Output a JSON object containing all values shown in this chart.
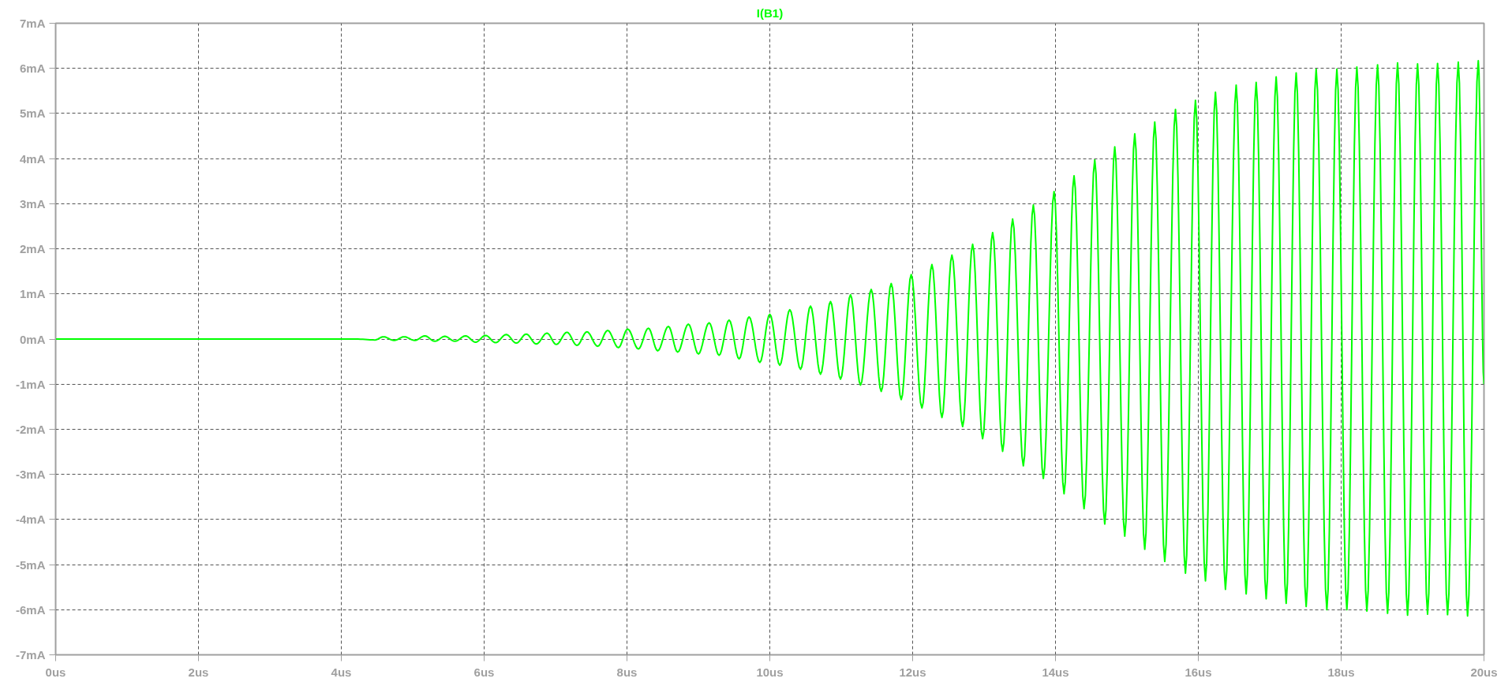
{
  "chart_data": {
    "type": "line",
    "title": "I(B1)",
    "x": [
      0,
      4.2,
      4.47,
      4.59,
      4.74,
      4.88,
      5.03,
      5.17,
      5.31,
      5.45,
      5.59,
      5.74,
      5.88,
      6.02,
      6.16,
      6.31,
      6.45,
      6.59,
      6.73,
      6.88,
      7.01,
      7.16,
      7.3,
      7.44,
      7.59,
      7.73,
      7.88,
      8.01,
      8.16,
      8.3,
      8.43,
      8.58,
      8.71,
      8.86,
      9.0,
      9.15,
      9.29,
      9.43,
      9.57,
      9.71,
      9.86,
      10.0,
      10.14,
      10.28,
      10.43,
      10.57,
      10.71,
      10.85,
      10.99,
      11.13,
      11.27,
      11.42,
      11.56,
      11.7,
      11.84,
      11.98,
      12.13,
      12.27,
      12.41,
      12.55,
      12.7,
      12.84,
      12.98,
      13.12,
      13.26,
      13.4,
      13.55,
      13.69,
      13.83,
      13.98,
      14.12,
      14.26,
      14.4,
      14.55,
      14.69,
      14.83,
      14.97,
      15.11,
      15.25,
      15.39,
      15.53,
      15.68,
      15.82,
      15.96,
      16.1,
      16.24,
      16.38,
      16.53,
      16.67,
      16.81,
      16.95,
      17.09,
      17.23,
      17.37,
      17.51,
      17.65,
      17.8,
      17.94,
      18.08,
      18.22,
      18.36,
      18.51,
      18.65,
      18.79,
      18.93,
      19.07,
      19.21,
      19.35,
      19.49,
      19.64,
      19.77,
      19.92,
      20.0
    ],
    "series": [
      {
        "color": "#00ff00",
        "values": [
          0,
          0,
          -0.02,
          0.05,
          -0.03,
          0.05,
          -0.03,
          0.07,
          -0.05,
          0.06,
          -0.05,
          0.07,
          -0.07,
          0.08,
          -0.08,
          0.1,
          -0.09,
          0.11,
          -0.11,
          0.13,
          -0.12,
          0.15,
          -0.14,
          0.16,
          -0.16,
          0.19,
          -0.19,
          0.22,
          -0.22,
          0.24,
          -0.26,
          0.28,
          -0.29,
          0.33,
          -0.33,
          0.36,
          -0.36,
          0.42,
          -0.44,
          0.49,
          -0.52,
          0.55,
          -0.58,
          0.65,
          -0.67,
          0.73,
          -0.78,
          0.83,
          -0.89,
          0.98,
          -1.02,
          1.1,
          -1.16,
          1.23,
          -1.34,
          1.43,
          -1.53,
          1.65,
          -1.74,
          1.86,
          -1.94,
          2.1,
          -2.21,
          2.36,
          -2.49,
          2.66,
          -2.81,
          2.97,
          -3.09,
          3.27,
          -3.43,
          3.62,
          -3.76,
          3.97,
          -4.1,
          4.26,
          -4.37,
          4.55,
          -4.66,
          4.81,
          -4.93,
          5.09,
          -5.19,
          5.29,
          -5.36,
          5.47,
          -5.55,
          5.63,
          -5.65,
          5.69,
          -5.76,
          5.81,
          -5.86,
          5.9,
          -5.93,
          5.98,
          -6.0,
          5.98,
          -6.0,
          6.03,
          -6.03,
          6.08,
          -6.08,
          6.12,
          -6.12,
          6.1,
          -6.1,
          6.11,
          -6.11,
          6.14,
          -6.14,
          6.17,
          -1.0
        ]
      }
    ],
    "xlim": [
      0,
      20
    ],
    "ylim": [
      -7,
      7
    ],
    "xticks": [
      {
        "value": 0,
        "label": "0us"
      },
      {
        "value": 2,
        "label": "2us"
      },
      {
        "value": 4,
        "label": "4us"
      },
      {
        "value": 6,
        "label": "6us"
      },
      {
        "value": 8,
        "label": "8us"
      },
      {
        "value": 10,
        "label": "10us"
      },
      {
        "value": 12,
        "label": "12us"
      },
      {
        "value": 14,
        "label": "14us"
      },
      {
        "value": 16,
        "label": "16us"
      },
      {
        "value": 18,
        "label": "18us"
      },
      {
        "value": 20,
        "label": "20us"
      }
    ],
    "yticks": [
      {
        "value": 7,
        "label": "7mA"
      },
      {
        "value": 6,
        "label": "6mA"
      },
      {
        "value": 5,
        "label": "5mA"
      },
      {
        "value": 4,
        "label": "4mA"
      },
      {
        "value": 3,
        "label": "3mA"
      },
      {
        "value": 2,
        "label": "2mA"
      },
      {
        "value": 1,
        "label": "1mA"
      },
      {
        "value": 0,
        "label": "0mA"
      },
      {
        "value": -1,
        "label": "-1mA"
      },
      {
        "value": -2,
        "label": "-2mA"
      },
      {
        "value": -3,
        "label": "-3mA"
      },
      {
        "value": -4,
        "label": "-4mA"
      },
      {
        "value": -5,
        "label": "-5mA"
      },
      {
        "value": -6,
        "label": "-6mA"
      },
      {
        "value": -7,
        "label": "-7mA"
      }
    ],
    "grid": true
  }
}
